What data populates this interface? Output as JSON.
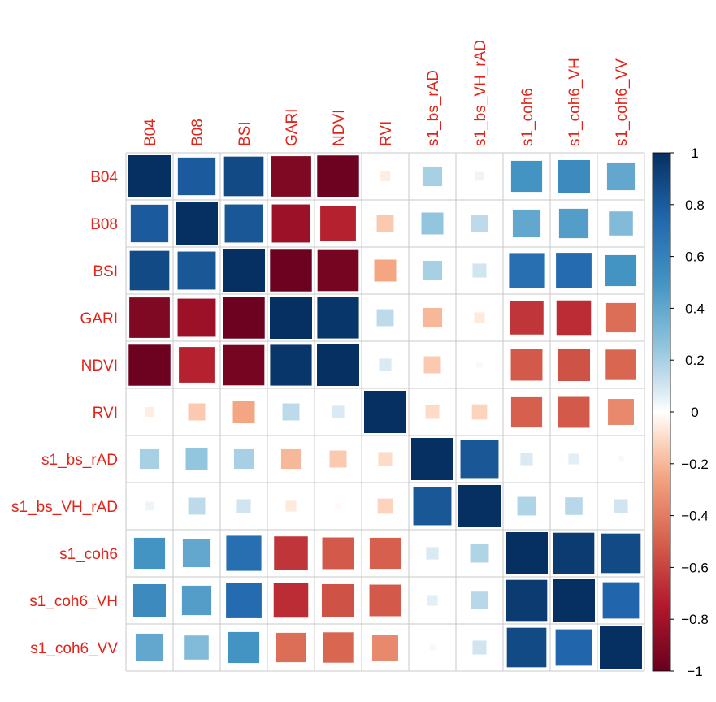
{
  "chart_data": {
    "type": "heatmap",
    "variables": [
      "B04",
      "B08",
      "BSI",
      "GARI",
      "NDVI",
      "RVI",
      "s1_bs_rAD",
      "s1_bs_VH_rAD",
      "s1_coh6",
      "s1_coh6_VH",
      "s1_coh6_VV"
    ],
    "matrix": [
      [
        1.0,
        0.8,
        0.88,
        -0.92,
        -0.98,
        -0.05,
        0.2,
        0.04,
        0.5,
        0.55,
        0.4
      ],
      [
        0.8,
        1.0,
        0.82,
        -0.82,
        -0.72,
        -0.15,
        0.25,
        0.15,
        0.4,
        0.45,
        0.3
      ],
      [
        0.88,
        0.82,
        1.0,
        -0.98,
        -0.95,
        -0.25,
        0.2,
        0.1,
        0.7,
        0.72,
        0.5
      ],
      [
        -0.92,
        -0.82,
        -0.98,
        1.0,
        0.97,
        0.15,
        -0.2,
        -0.06,
        -0.65,
        -0.68,
        -0.45
      ],
      [
        -0.98,
        -0.72,
        -0.95,
        0.97,
        1.0,
        0.08,
        -0.15,
        -0.02,
        -0.52,
        -0.55,
        -0.48
      ],
      [
        -0.05,
        -0.15,
        -0.25,
        0.15,
        0.08,
        1.0,
        -0.1,
        -0.12,
        -0.5,
        -0.52,
        -0.35
      ],
      [
        0.2,
        0.25,
        0.2,
        -0.2,
        -0.15,
        -0.1,
        1.0,
        0.82,
        0.08,
        0.06,
        0.02
      ],
      [
        0.04,
        0.15,
        0.1,
        -0.06,
        -0.02,
        -0.12,
        0.82,
        1.0,
        0.18,
        0.16,
        0.1
      ],
      [
        0.5,
        0.4,
        0.7,
        -0.65,
        -0.52,
        -0.5,
        0.08,
        0.18,
        1.0,
        0.95,
        0.88
      ],
      [
        0.55,
        0.45,
        0.72,
        -0.68,
        -0.55,
        -0.52,
        0.06,
        0.16,
        0.95,
        1.0,
        0.75
      ],
      [
        0.4,
        0.3,
        0.5,
        -0.45,
        -0.48,
        -0.35,
        0.02,
        0.1,
        0.88,
        0.75,
        1.0
      ]
    ],
    "colorbar_ticks": [
      "1",
      "0.8",
      "0.6",
      "0.4",
      "0.2",
      "0",
      "−0.2",
      "−0.4",
      "−0.6",
      "−0.8",
      "−1"
    ],
    "colorbar_values": [
      1,
      0.8,
      0.6,
      0.4,
      0.2,
      0,
      -0.2,
      -0.4,
      -0.6,
      -0.8,
      -1
    ],
    "range": [
      -1,
      1
    ],
    "colors": {
      "negative_end": "#67001f",
      "mid": "#ffffff",
      "positive_end": "#053061",
      "label": "#e3231a",
      "grid": "#c8c8c8"
    }
  }
}
